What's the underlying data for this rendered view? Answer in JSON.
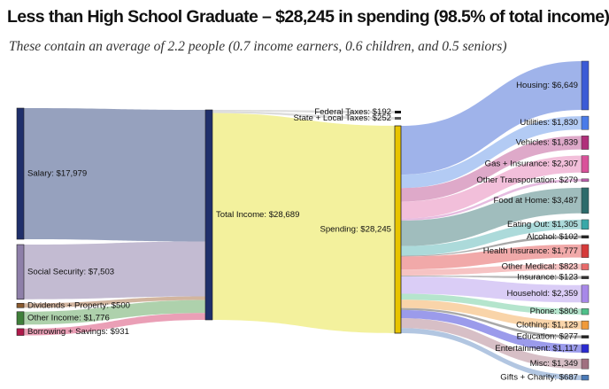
{
  "title": "Less than High School Graduate – $28,245 in spending (98.5% of total income)",
  "subtitle": "These contain an average of 2.2 people (0.7 income earners, 0.6 children, and 0.5 seniors)",
  "chart_data": {
    "type": "sankey",
    "units": "USD",
    "income_sources": [
      {
        "key": "salary",
        "label": "Salary: $17,979",
        "value": 17979,
        "color": "#1f2f6b",
        "flow_color": "#7f8cb0"
      },
      {
        "key": "social_security",
        "label": "Social Security: $7,503",
        "value": 7503,
        "color": "#8e7fa9",
        "flow_color": "#b6acc8"
      },
      {
        "key": "dividends",
        "label": "Dividends + Property: $500",
        "value": 500,
        "color": "#8a5a2e",
        "flow_color": "#c8a58a"
      },
      {
        "key": "other_income",
        "label": "Other Income: $1,776",
        "value": 1776,
        "color": "#3f7f3a",
        "flow_color": "#9cc79a"
      },
      {
        "key": "borrowing",
        "label": "Borrowing + Savings: $931",
        "value": 931,
        "color": "#b0194a",
        "flow_color": "#e58aa6"
      }
    ],
    "total_income": {
      "label": "Total Income: $28,689",
      "value": 28689,
      "color": "#1f2f6b",
      "fill": "#f3f19d"
    },
    "taxes": [
      {
        "key": "federal_taxes",
        "label": "Federal Taxes: $192",
        "value": 192,
        "color": "#111111"
      },
      {
        "key": "state_local_taxes",
        "label": "State + Local Taxes: $252",
        "value": 252,
        "color": "#555555"
      }
    ],
    "spending": {
      "label": "Spending: $28,245",
      "value": 28245,
      "color": "#e8c400"
    },
    "categories": [
      {
        "key": "housing",
        "label": "Housing: $6,649",
        "value": 6649,
        "color": "#3b5bd6",
        "flow_color": "#8ea6e6"
      },
      {
        "key": "utilities",
        "label": "Utilities: $1,830",
        "value": 1830,
        "color": "#4a7be8",
        "flow_color": "#a6c2f2"
      },
      {
        "key": "vehicles",
        "label": "Vehicles: $1,839",
        "value": 1839,
        "color": "#b0307a",
        "flow_color": "#d89ac0"
      },
      {
        "key": "gas_insurance",
        "label": "Gas + Insurance: $2,307",
        "value": 2307,
        "color": "#d9529a",
        "flow_color": "#f0b4d4"
      },
      {
        "key": "other_transportation",
        "label": "Other Transportation: $279",
        "value": 279,
        "color": "#c060b0",
        "flow_color": "#e2b0da"
      },
      {
        "key": "food_at_home",
        "label": "Food at Home: $3,487",
        "value": 3487,
        "color": "#2d6b6b",
        "flow_color": "#8fb1b1"
      },
      {
        "key": "eating_out",
        "label": "Eating Out: $1,305",
        "value": 1305,
        "color": "#3aa8a8",
        "flow_color": "#9ed4d4"
      },
      {
        "key": "alcohol",
        "label": "Alcohol: $102",
        "value": 102,
        "color": "#222222",
        "flow_color": "#999999"
      },
      {
        "key": "health_insurance",
        "label": "Health Insurance: $1,777",
        "value": 1777,
        "color": "#d63a3a",
        "flow_color": "#ef9a9a"
      },
      {
        "key": "other_medical",
        "label": "Other Medical: $823",
        "value": 823,
        "color": "#e86a6a",
        "flow_color": "#f4b8b8"
      },
      {
        "key": "insurance",
        "label": "Insurance: $123",
        "value": 123,
        "color": "#333333",
        "flow_color": "#aaaaaa"
      },
      {
        "key": "household",
        "label": "Household: $2,359",
        "value": 2359,
        "color": "#a788e8",
        "flow_color": "#d4c4f4"
      },
      {
        "key": "phone",
        "label": "Phone: $806",
        "value": 806,
        "color": "#4fc08a",
        "flow_color": "#a8e0c4"
      },
      {
        "key": "clothing",
        "label": "Clothing: $1,129",
        "value": 1129,
        "color": "#f09a3a",
        "flow_color": "#f8cc9a"
      },
      {
        "key": "education",
        "label": "Education: $277",
        "value": 277,
        "color": "#222222",
        "flow_color": "#9a9a9a"
      },
      {
        "key": "entertainment",
        "label": "Entertainment: $1,117",
        "value": 1117,
        "color": "#2a2ad0",
        "flow_color": "#8a8ae8"
      },
      {
        "key": "misc",
        "label": "Misc: $1,349",
        "value": 1349,
        "color": "#a07080",
        "flow_color": "#d0b4bc"
      },
      {
        "key": "gifts_charity",
        "label": "Gifts + Charity: $687",
        "value": 687,
        "color": "#4a7ab8",
        "flow_color": "#a4bcdc"
      }
    ]
  }
}
